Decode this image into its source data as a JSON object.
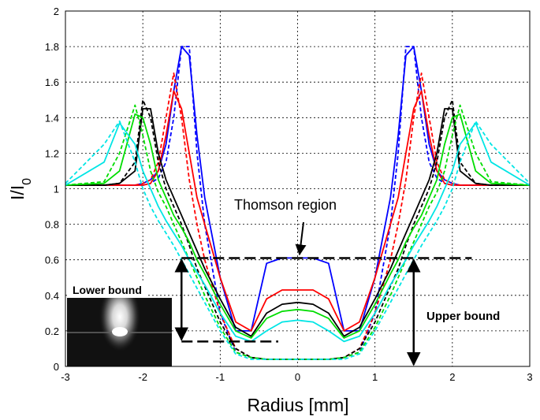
{
  "chart_data": {
    "type": "line",
    "xlabel": "Radius [mm]",
    "ylabel": "I/I",
    "ylabel_sub": "0",
    "annotations": [
      "Thomson region",
      "Lower bound",
      "Upper bound"
    ],
    "x": [
      -3,
      -2.5,
      -2.3,
      -2.1,
      -2,
      -1.9,
      -1.8,
      -1.7,
      -1.6,
      -1.5,
      -1.4,
      -1.3,
      -1.2,
      -1,
      -0.8,
      -0.6,
      -0.4,
      -0.2,
      0,
      0.2,
      0.4,
      0.6,
      0.8,
      1,
      1.2,
      1.3,
      1.4,
      1.5,
      1.6,
      1.7,
      1.8,
      1.9,
      2,
      2.1,
      2.3,
      2.5,
      3
    ],
    "series": [
      {
        "color": "#0000ff",
        "dashed": false,
        "values": [
          1.02,
          1.02,
          1.02,
          1.02,
          1.03,
          1.05,
          1.1,
          1.25,
          1.55,
          1.8,
          1.75,
          1.3,
          0.95,
          0.5,
          0.2,
          0.2,
          0.58,
          0.61,
          0.61,
          0.61,
          0.58,
          0.2,
          0.2,
          0.5,
          0.95,
          1.3,
          1.75,
          1.8,
          1.55,
          1.25,
          1.1,
          1.05,
          1.03,
          1.02,
          1.02,
          1.02,
          1.02
        ]
      },
      {
        "color": "#0000ff",
        "dashed": true,
        "values": [
          1.02,
          1.02,
          1.02,
          1.02,
          1.02,
          1.03,
          1.06,
          1.15,
          1.4,
          1.8,
          1.8,
          1.2,
          0.8,
          0.3,
          0.08,
          0.05,
          0.04,
          0.04,
          0.04,
          0.04,
          0.04,
          0.05,
          0.08,
          0.3,
          0.8,
          1.2,
          1.8,
          1.8,
          1.4,
          1.15,
          1.06,
          1.03,
          1.02,
          1.02,
          1.02,
          1.02,
          1.02
        ]
      },
      {
        "color": "#ff0000",
        "dashed": false,
        "values": [
          1.02,
          1.02,
          1.02,
          1.02,
          1.02,
          1.03,
          1.1,
          1.3,
          1.55,
          1.45,
          1.2,
          0.95,
          0.8,
          0.5,
          0.25,
          0.2,
          0.38,
          0.43,
          0.43,
          0.43,
          0.38,
          0.2,
          0.25,
          0.5,
          0.8,
          0.95,
          1.2,
          1.45,
          1.55,
          1.3,
          1.1,
          1.03,
          1.02,
          1.02,
          1.02,
          1.02,
          1.02
        ]
      },
      {
        "color": "#ff0000",
        "dashed": true,
        "values": [
          1.02,
          1.02,
          1.02,
          1.02,
          1.03,
          1.05,
          1.15,
          1.4,
          1.65,
          1.4,
          1.05,
          0.8,
          0.6,
          0.3,
          0.1,
          0.05,
          0.04,
          0.04,
          0.04,
          0.04,
          0.04,
          0.05,
          0.1,
          0.3,
          0.6,
          0.8,
          1.05,
          1.4,
          1.65,
          1.4,
          1.15,
          1.05,
          1.03,
          1.02,
          1.02,
          1.02,
          1.02
        ]
      },
      {
        "color": "#000000",
        "dashed": false,
        "values": [
          1.02,
          1.02,
          1.03,
          1.1,
          1.45,
          1.45,
          1.2,
          1.05,
          0.95,
          0.85,
          0.75,
          0.65,
          0.55,
          0.38,
          0.22,
          0.17,
          0.3,
          0.35,
          0.36,
          0.35,
          0.3,
          0.17,
          0.22,
          0.38,
          0.55,
          0.65,
          0.75,
          0.85,
          0.95,
          1.05,
          1.2,
          1.45,
          1.45,
          1.1,
          1.03,
          1.02,
          1.02
        ]
      },
      {
        "color": "#000000",
        "dashed": true,
        "values": [
          1.02,
          1.02,
          1.03,
          1.15,
          1.5,
          1.4,
          1.15,
          1.0,
          0.9,
          0.8,
          0.68,
          0.55,
          0.45,
          0.25,
          0.1,
          0.05,
          0.04,
          0.04,
          0.04,
          0.04,
          0.04,
          0.05,
          0.1,
          0.25,
          0.45,
          0.55,
          0.68,
          0.8,
          0.9,
          1.0,
          1.15,
          1.4,
          1.5,
          1.15,
          1.03,
          1.02,
          1.02
        ]
      },
      {
        "color": "#00dd00",
        "dashed": false,
        "values": [
          1.02,
          1.03,
          1.1,
          1.42,
          1.4,
          1.25,
          1.05,
          0.95,
          0.85,
          0.78,
          0.7,
          0.6,
          0.52,
          0.35,
          0.2,
          0.16,
          0.27,
          0.31,
          0.32,
          0.31,
          0.27,
          0.16,
          0.2,
          0.35,
          0.52,
          0.6,
          0.7,
          0.78,
          0.85,
          0.95,
          1.05,
          1.25,
          1.4,
          1.42,
          1.1,
          1.03,
          1.02
        ]
      },
      {
        "color": "#00dd00",
        "dashed": true,
        "values": [
          1.02,
          1.04,
          1.2,
          1.47,
          1.3,
          1.1,
          0.98,
          0.9,
          0.8,
          0.7,
          0.6,
          0.5,
          0.4,
          0.22,
          0.08,
          0.05,
          0.04,
          0.04,
          0.04,
          0.04,
          0.04,
          0.05,
          0.08,
          0.22,
          0.4,
          0.5,
          0.6,
          0.7,
          0.8,
          0.9,
          0.98,
          1.1,
          1.3,
          1.47,
          1.2,
          1.04,
          1.02
        ]
      },
      {
        "color": "#00e5e5",
        "dashed": false,
        "values": [
          1.02,
          1.15,
          1.37,
          1.25,
          1.1,
          1.0,
          0.9,
          0.82,
          0.75,
          0.68,
          0.6,
          0.53,
          0.46,
          0.3,
          0.17,
          0.14,
          0.2,
          0.25,
          0.26,
          0.25,
          0.2,
          0.14,
          0.17,
          0.3,
          0.46,
          0.53,
          0.6,
          0.68,
          0.75,
          0.82,
          0.9,
          1.0,
          1.1,
          1.25,
          1.37,
          1.15,
          1.02
        ]
      },
      {
        "color": "#00e5e5",
        "dashed": true,
        "values": [
          1.03,
          1.25,
          1.38,
          1.15,
          1.0,
          0.9,
          0.82,
          0.75,
          0.68,
          0.6,
          0.52,
          0.44,
          0.36,
          0.2,
          0.07,
          0.04,
          0.04,
          0.04,
          0.04,
          0.04,
          0.04,
          0.04,
          0.07,
          0.2,
          0.36,
          0.44,
          0.52,
          0.6,
          0.68,
          0.75,
          0.82,
          0.9,
          1.0,
          1.15,
          1.38,
          1.25,
          1.03
        ]
      }
    ],
    "xlim": [
      -3,
      3
    ],
    "ylim": [
      0,
      2
    ],
    "xticks": [
      -3,
      -2,
      -1,
      0,
      1,
      2,
      3
    ],
    "yticks": [
      0,
      0.2,
      0.4,
      0.6,
      0.8,
      1,
      1.2,
      1.4,
      1.6,
      1.8,
      2
    ],
    "grid": true
  }
}
